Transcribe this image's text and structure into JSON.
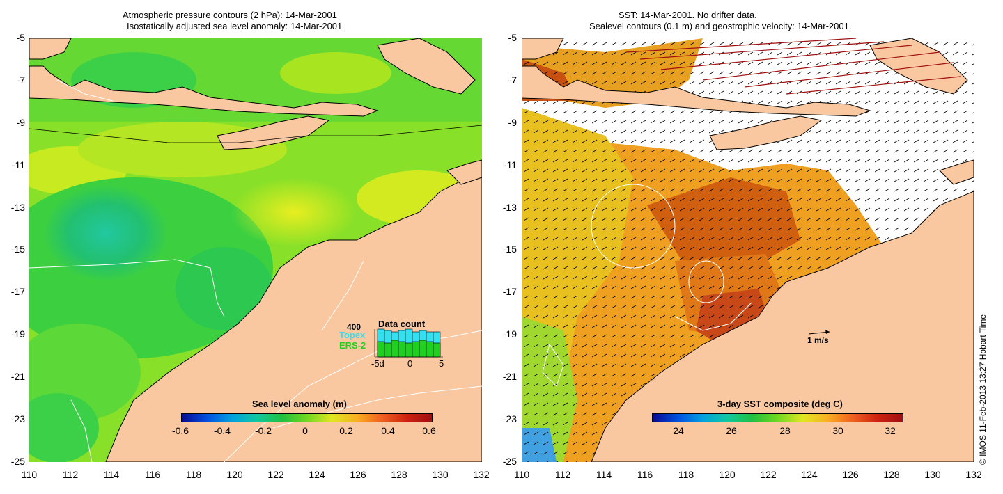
{
  "left_panel": {
    "title_line1": "Atmospheric pressure contours (2 hPa): 14-Mar-2001",
    "title_line2": "Isostatically adjusted sea level anomaly: 14-Mar-2001",
    "colorbar": {
      "label": "Sea level anomaly (m)",
      "ticks": [
        "-0.6",
        "-0.4",
        "-0.2",
        "0",
        "0.2",
        "0.4",
        "0.6"
      ]
    },
    "data_count": {
      "title": "Data count",
      "max_label": "400",
      "series_topex": "Topex",
      "series_ers2": "ERS-2",
      "x_labels": [
        "-5d",
        "0",
        "5"
      ],
      "topex_colour": "#33e0f0",
      "ers2_colour": "#20d020"
    }
  },
  "right_panel": {
    "title_line1": "SST: 14-Mar-2001. No drifter data.",
    "title_line2": "Sealevel contours (0.1 m) and geostrophic velocity: 14-Mar-2001.",
    "colorbar": {
      "label": "3-day SST composite (deg C)",
      "ticks": [
        "24",
        "26",
        "28",
        "30",
        "32"
      ]
    },
    "velocity_scale_label": "1 m/s"
  },
  "axes": {
    "y_ticks": [
      "-5",
      "-7",
      "-9",
      "-11",
      "-13",
      "-15",
      "-17",
      "-19",
      "-21",
      "-23",
      "-25"
    ],
    "x_ticks": [
      "110",
      "112",
      "114",
      "116",
      "118",
      "120",
      "122",
      "124",
      "126",
      "128",
      "130",
      "132"
    ]
  },
  "copyright": "© IMOS 11-Feb-2013 13:27 Hobart Time",
  "colors": {
    "land": "#f9c8a0",
    "ocean_green": "#66dd22",
    "no_data": "#ffffff"
  }
}
